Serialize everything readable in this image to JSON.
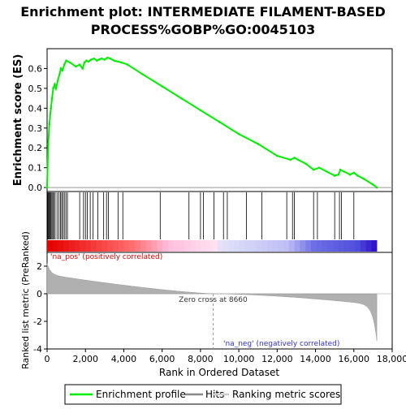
{
  "chart_data": {
    "type": "line",
    "title": "Enrichment plot: INTERMEDIATE FILAMENT-BASED PROCESS%GOBP%GO:0045103",
    "title_lines": [
      "Enrichment plot: INTERMEDIATE FILAMENT-BASED",
      "PROCESS%GOBP%GO:0045103"
    ],
    "es_panel": {
      "ylabel": "Enrichment score (ES)",
      "ylim": [
        -0.02,
        0.7
      ],
      "yticks": [
        0.0,
        0.1,
        0.2,
        0.3,
        0.4,
        0.5,
        0.6
      ],
      "series": [
        {
          "name": "Enrichment profile",
          "color": "#00ee00",
          "x": [
            0,
            60,
            120,
            200,
            260,
            320,
            400,
            460,
            560,
            650,
            720,
            800,
            900,
            1000,
            1200,
            1500,
            1700,
            1850,
            1950,
            2050,
            2150,
            2300,
            2450,
            2600,
            2700,
            2850,
            3000,
            3150,
            3300,
            3500,
            3700,
            3900,
            4200,
            5000,
            6000,
            7000,
            8000,
            9000,
            10000,
            11000,
            12000,
            12700,
            12900,
            13100,
            13500,
            13900,
            14200,
            14600,
            15000,
            15200,
            15300,
            15500,
            15800,
            16000,
            16200,
            16500,
            17000,
            17200
          ],
          "y": [
            0.0,
            0.22,
            0.32,
            0.4,
            0.45,
            0.5,
            0.52,
            0.5,
            0.54,
            0.57,
            0.6,
            0.59,
            0.62,
            0.64,
            0.63,
            0.61,
            0.62,
            0.6,
            0.63,
            0.64,
            0.635,
            0.645,
            0.65,
            0.64,
            0.645,
            0.65,
            0.645,
            0.655,
            0.65,
            0.64,
            0.635,
            0.63,
            0.62,
            0.57,
            0.51,
            0.45,
            0.39,
            0.33,
            0.27,
            0.22,
            0.16,
            0.14,
            0.15,
            0.14,
            0.12,
            0.09,
            0.1,
            0.08,
            0.06,
            0.065,
            0.09,
            0.08,
            0.065,
            0.075,
            0.06,
            0.045,
            0.015,
            0.0
          ]
        }
      ]
    },
    "hits_panel": {
      "legend_name": "Hits",
      "hit_ranks": [
        10,
        40,
        80,
        120,
        160,
        200,
        250,
        300,
        350,
        420,
        520,
        620,
        700,
        760,
        830,
        900,
        980,
        1060,
        1700,
        1900,
        2000,
        2100,
        2250,
        2400,
        2650,
        2950,
        3100,
        3200,
        3700,
        3950,
        5900,
        7400,
        8000,
        8150,
        8700,
        9200,
        9400,
        10400,
        11200,
        12500,
        12800,
        12900,
        13900,
        14100,
        15000,
        15250,
        15350,
        16000
      ]
    },
    "metric_panel": {
      "ylabel": "Ranked list metric (PreRanked)",
      "ylim": [
        -4,
        3
      ],
      "yticks": [
        -4,
        -2,
        0,
        2
      ],
      "zero_cross_label": "Zero cross at 8660",
      "zero_cross": 8660,
      "pos_label": "'na_pos' (positively correlated)",
      "neg_label": "'na_neg' (negatively correlated)",
      "legend_name": "Ranking metric scores"
    },
    "xlabel": "Rank in Ordered Dataset",
    "xlim": [
      0,
      18000
    ],
    "xticks": [
      0,
      2000,
      4000,
      6000,
      8000,
      10000,
      12000,
      14000,
      16000,
      18000
    ],
    "xtick_labels": [
      "0",
      "2,000",
      "4,000",
      "6,000",
      "8,000",
      "10,000",
      "12,000",
      "14,000",
      "16,000",
      "18,000"
    ],
    "n_genes": 17200,
    "legend": {
      "placement": "bottom",
      "items": [
        "Enrichment profile",
        "Hits",
        "Ranking metric scores"
      ]
    },
    "grid": false
  }
}
